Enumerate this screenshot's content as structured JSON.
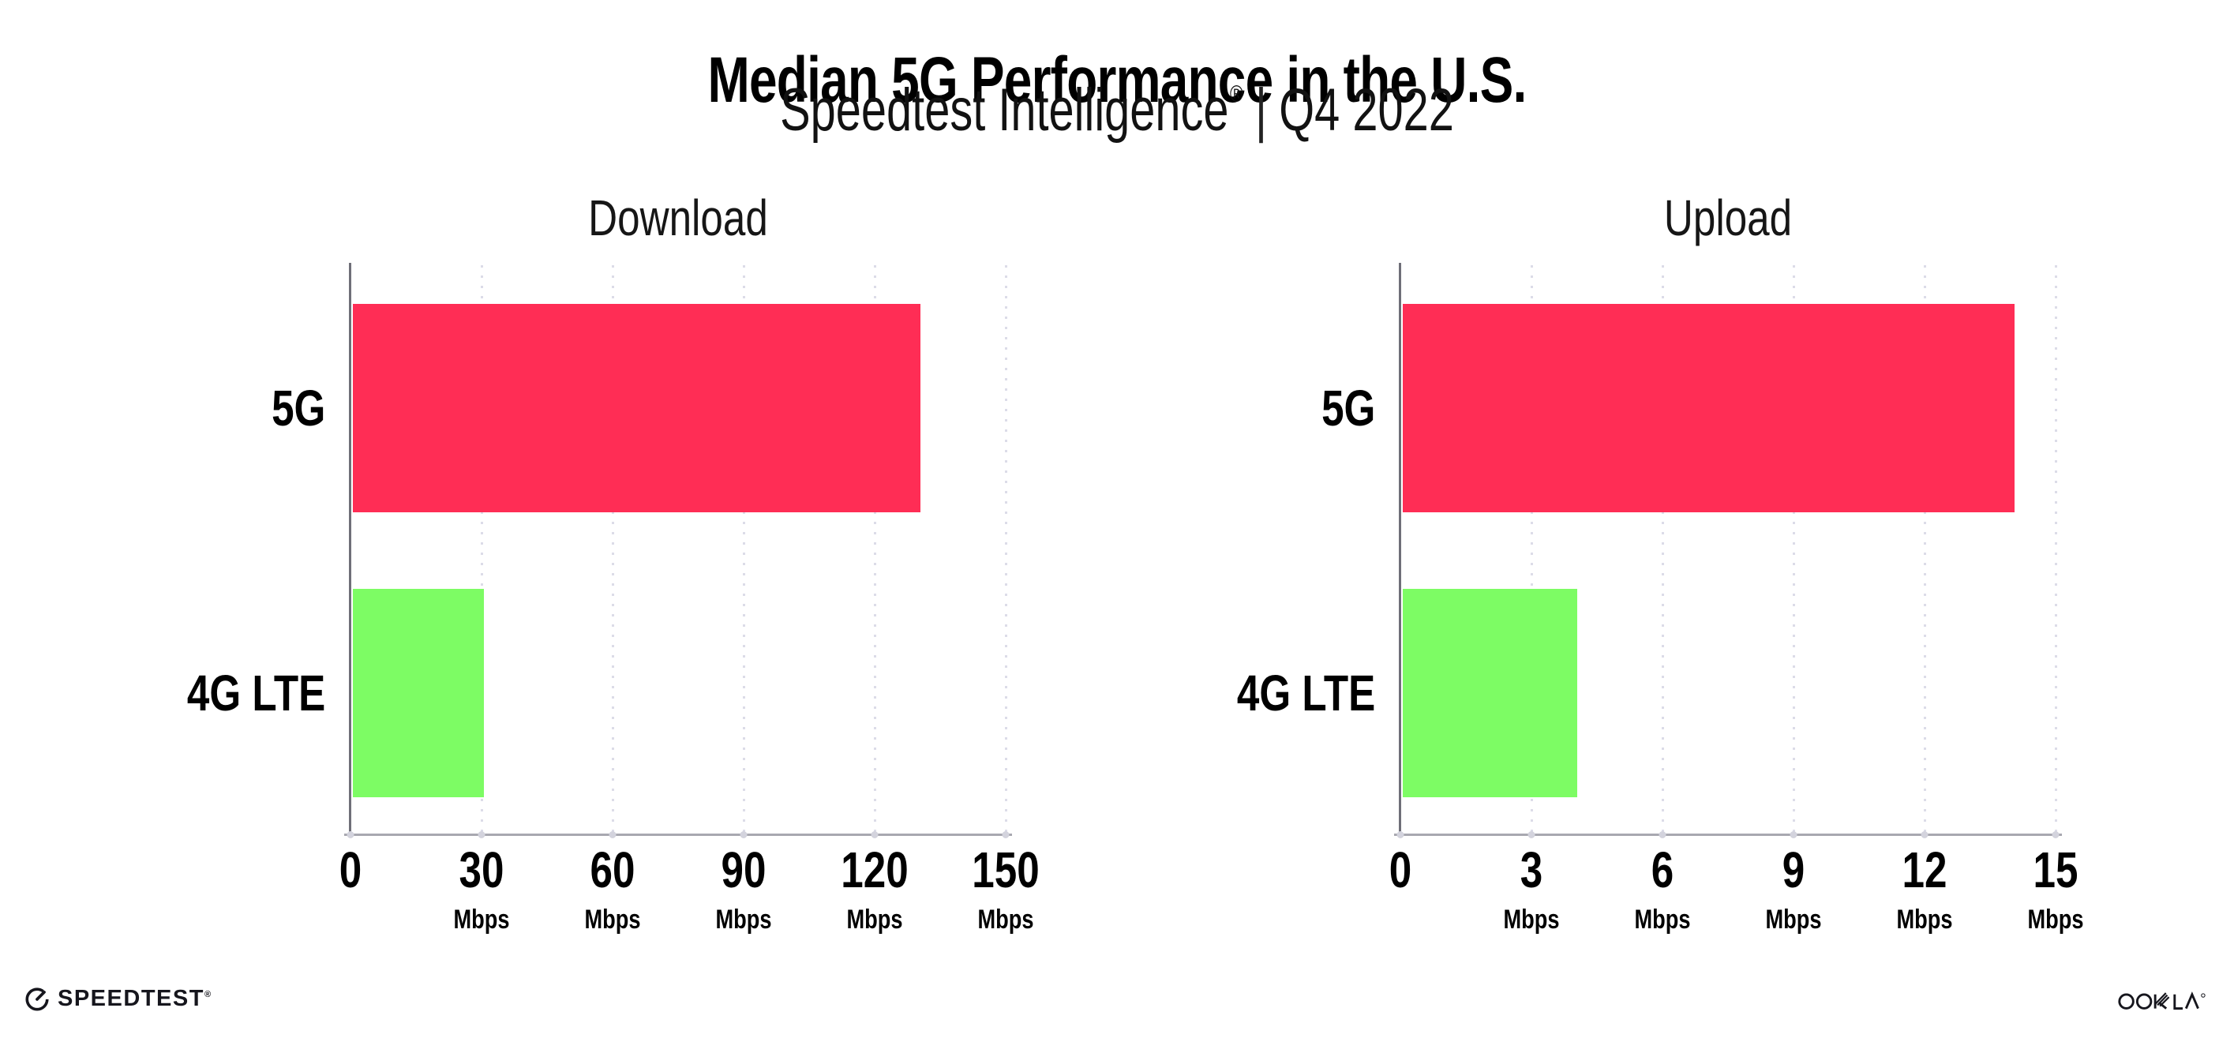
{
  "title": "Median 5G Performance in the U.S.",
  "subtitle": {
    "product": "Speedtest Intelligence",
    "registered": "®",
    "separator": "|",
    "period": "Q4 2022"
  },
  "footer": {
    "speedtest_label": "SPEEDTEST",
    "speedtest_mark": "®",
    "ookla_label": "OOKLA"
  },
  "colors": {
    "bar_5g": "#FF2D55",
    "bar_4g_lte": "#7DFC64",
    "gridline": "#DCDCE8",
    "axis_line": "#A8A8B0",
    "y_spine": "#6F6F78",
    "text": "#000000"
  },
  "chart_data": [
    {
      "type": "bar",
      "orientation": "horizontal",
      "title": "Download",
      "categories": [
        "5G",
        "4G LTE"
      ],
      "values": [
        130,
        30
      ],
      "unit": "Mbps",
      "xlim": [
        0,
        150
      ],
      "xticks": [
        0,
        30,
        60,
        90,
        120,
        150
      ],
      "tick_unit_label": "Mbps",
      "grid": "vertical-dotted",
      "legend": "none",
      "bar_colors": [
        "#FF2D55",
        "#7DFC64"
      ]
    },
    {
      "type": "bar",
      "orientation": "horizontal",
      "title": "Upload",
      "categories": [
        "5G",
        "4G LTE"
      ],
      "values": [
        14,
        4
      ],
      "unit": "Mbps",
      "xlim": [
        0,
        15
      ],
      "xticks": [
        0,
        3,
        6,
        9,
        12,
        15
      ],
      "tick_unit_label": "Mbps",
      "grid": "vertical-dotted",
      "legend": "none",
      "bar_colors": [
        "#FF2D55",
        "#7DFC64"
      ]
    }
  ]
}
